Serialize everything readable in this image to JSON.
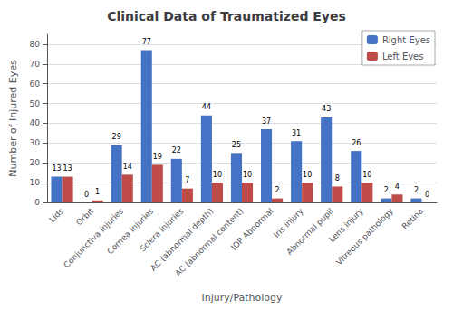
{
  "chart_data": {
    "type": "bar",
    "title": "Clinical Data of Traumatized Eyes",
    "xlabel": "Injury/Pathology",
    "ylabel": "Number of Injured Eyes",
    "categories": [
      "Lids",
      "Orbit",
      "Conjunctiva injuries",
      "Cornea injuries",
      "Sclera injuries",
      "AC (abnormal depth)",
      "AC (abnormal content)",
      "IOP Abnormal",
      "Iris injury",
      "Abnormal pupil",
      "Lens injury",
      "Vitreous pathology",
      "Retina"
    ],
    "series": [
      {
        "name": "Right Eyes",
        "color": "#4472C4",
        "values": [
          13,
          0,
          29,
          77,
          22,
          44,
          25,
          37,
          31,
          43,
          26,
          2,
          2
        ]
      },
      {
        "name": "Left Eyes",
        "color": "#BE4B48",
        "values": [
          13,
          1,
          14,
          19,
          7,
          10,
          10,
          2,
          10,
          8,
          10,
          4,
          0
        ]
      }
    ],
    "ylim": [
      0,
      85
    ],
    "yticks": [
      0,
      10,
      20,
      30,
      40,
      50,
      60,
      70,
      80
    ],
    "grid": true,
    "legend": "upper right",
    "data_labels": true
  }
}
